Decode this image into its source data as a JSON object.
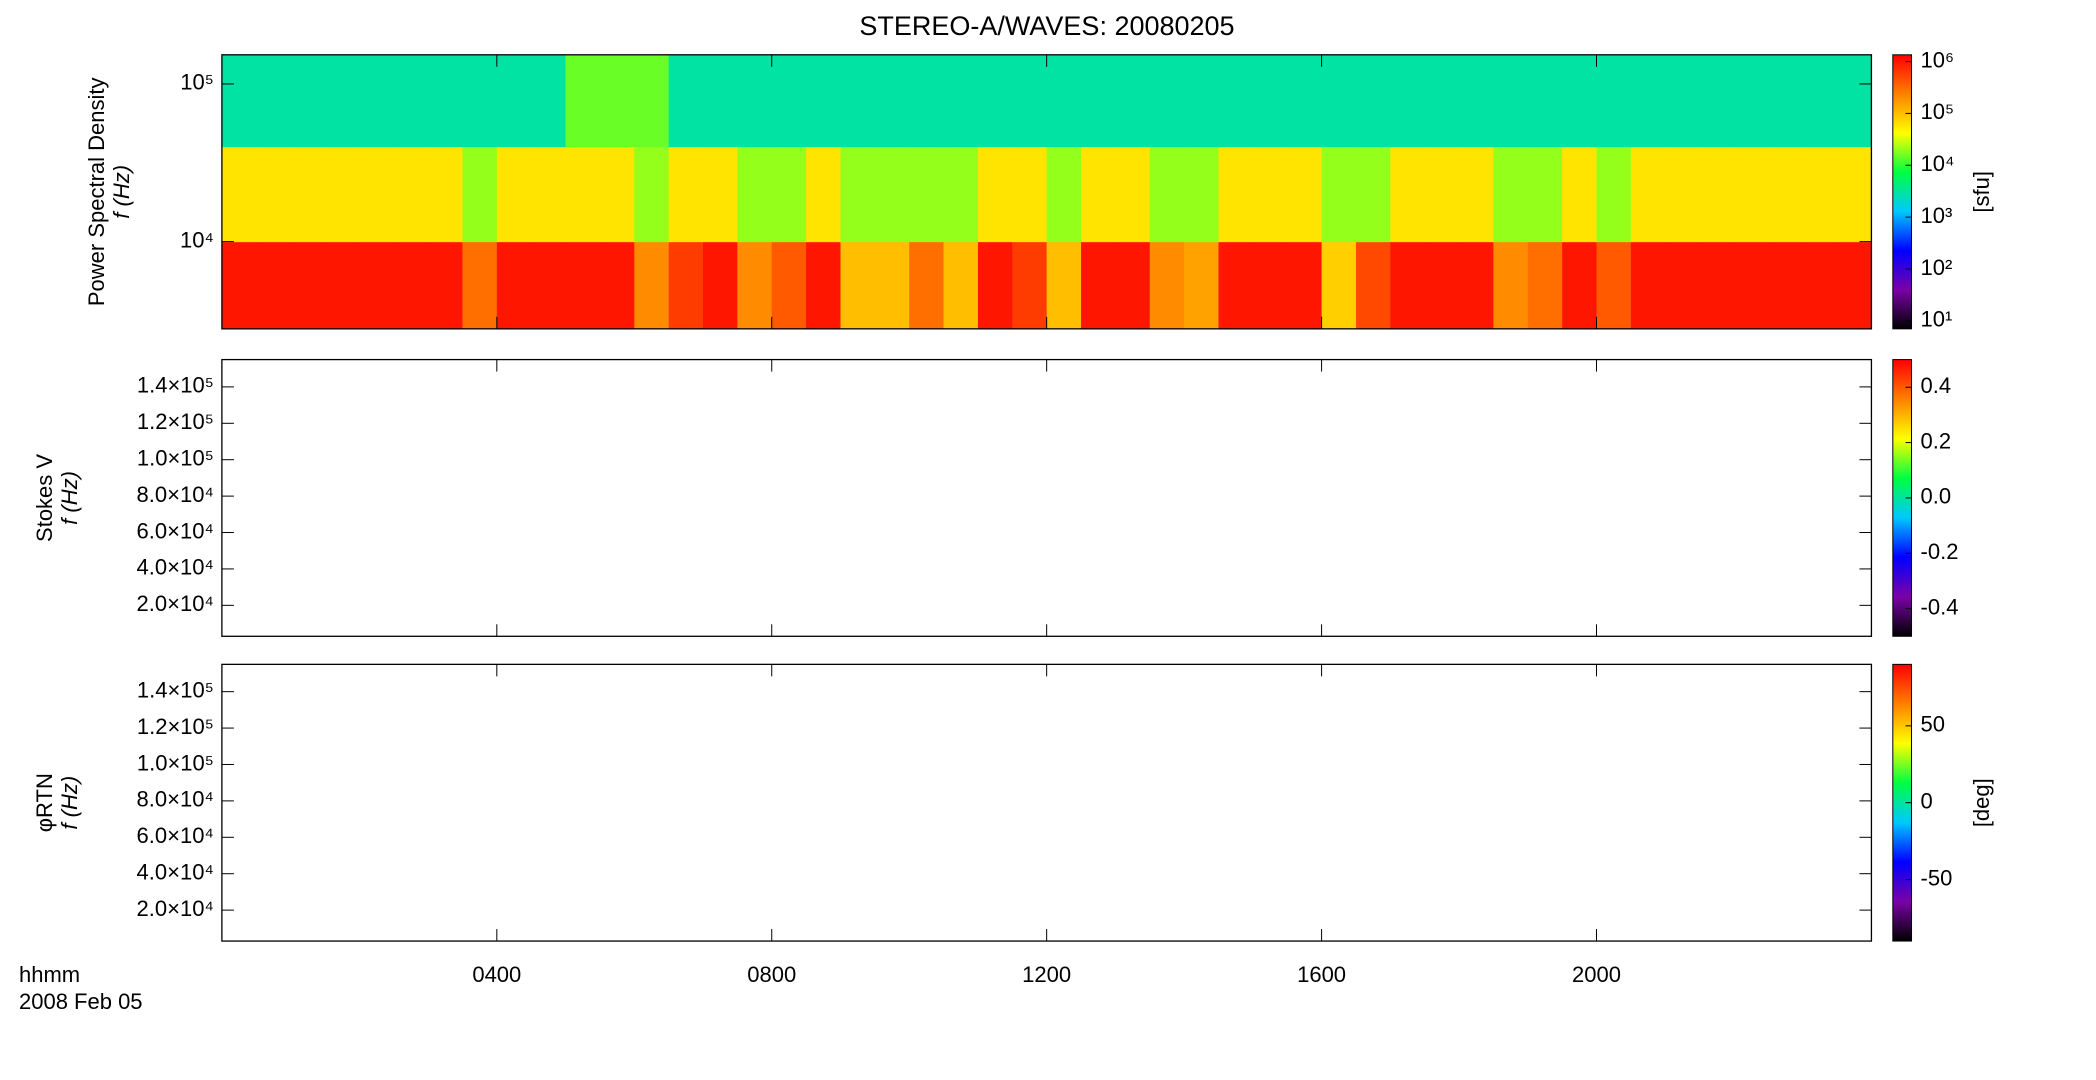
{
  "chart_data": [
    {
      "type": "heatmap",
      "title": "STEREO-A/WAVES: 20080205",
      "ylabel": "Power Spectral Density",
      "ylabel2": "f (Hz)",
      "ylog": true,
      "ylim": [
        2800,
        153000
      ],
      "yticks": [
        {
          "value": 10000,
          "label": "10⁴"
        },
        {
          "value": 100000,
          "label": "10⁵"
        }
      ],
      "x_bins": [
        0,
        0.5,
        1,
        1.5,
        2,
        2.5,
        3,
        3.5,
        4,
        4.5,
        5,
        5.5,
        6,
        6.5,
        7,
        7.5,
        8,
        8.5,
        9,
        9.5,
        10,
        10.5,
        11,
        11.5,
        12,
        12.5,
        13,
        13.5,
        14,
        14.5,
        15,
        15.5,
        16,
        16.5,
        17,
        17.5,
        18,
        18.5,
        19,
        19.5,
        20,
        20.5,
        21,
        21.5,
        22,
        22.5,
        23,
        23.5,
        24
      ],
      "y_bins": [
        2800,
        10000,
        40000,
        153000
      ],
      "z": [
        [
          1000000,
          1000000,
          1000000,
          1000000,
          1000000,
          1000000,
          1000000,
          300000,
          1000000,
          1000000,
          1000000,
          1000000,
          200000,
          600000,
          1000000,
          200000,
          400000,
          1000000,
          100000,
          100000,
          300000,
          100000,
          1000000,
          600000,
          100000,
          1000000,
          1000000,
          200000,
          150000,
          1000000,
          1000000,
          1000000,
          80000,
          500000,
          1000000,
          1000000,
          1000000,
          200000,
          300000,
          1000000,
          400000,
          1000000,
          1000000,
          1000000,
          1000000,
          1000000,
          1000000,
          1000000
        ],
        [
          60000,
          60000,
          60000,
          60000,
          60000,
          60000,
          60000,
          20000,
          60000,
          60000,
          60000,
          60000,
          20000,
          60000,
          60000,
          20000,
          20000,
          60000,
          20000,
          20000,
          20000,
          20000,
          60000,
          60000,
          20000,
          60000,
          60000,
          20000,
          20000,
          60000,
          60000,
          60000,
          20000,
          20000,
          60000,
          60000,
          60000,
          20000,
          20000,
          60000,
          20000,
          60000,
          60000,
          60000,
          60000,
          60000,
          60000,
          60000
        ],
        [
          3000,
          3000,
          3000,
          3000,
          3000,
          3000,
          3000,
          3000,
          3000,
          3000,
          15000,
          15000,
          15000,
          3000,
          3000,
          3000,
          3000,
          3000,
          3000,
          3000,
          3000,
          3000,
          3000,
          3000,
          3000,
          3000,
          3000,
          3000,
          3000,
          3000,
          3000,
          3000,
          3000,
          3000,
          3000,
          3000,
          3000,
          3000,
          3000,
          3000,
          3000,
          3000,
          3000,
          3000,
          3000,
          3000,
          3000,
          3000
        ]
      ],
      "zlog": true,
      "zlim": [
        7,
        1350000
      ],
      "zticks": [
        {
          "value": 10,
          "label": "10¹"
        },
        {
          "value": 100,
          "label": "10²"
        },
        {
          "value": 1000,
          "label": "10³"
        },
        {
          "value": 10000,
          "label": "10⁴"
        },
        {
          "value": 100000,
          "label": "10⁵"
        },
        {
          "value": 1000000,
          "label": "10⁶"
        }
      ],
      "zlabel": "[sfu]",
      "colormap": [
        "#000000",
        "#7b00a8",
        "#0000ff",
        "#00c8ff",
        "#00ff40",
        "#ffff00",
        "#ff8000",
        "#ff0000"
      ]
    },
    {
      "type": "heatmap",
      "ylabel": "Stokes V",
      "ylabel2": "f (Hz)",
      "ylim": [
        3000,
        155000
      ],
      "yticks": [
        {
          "value": 20000,
          "label": "2.0×10⁴"
        },
        {
          "value": 40000,
          "label": "4.0×10⁴"
        },
        {
          "value": 60000,
          "label": "6.0×10⁴"
        },
        {
          "value": 80000,
          "label": "8.0×10⁴"
        },
        {
          "value": 100000,
          "label": "1.0×10⁵"
        },
        {
          "value": 120000,
          "label": "1.2×10⁵"
        },
        {
          "value": 140000,
          "label": "1.4×10⁵"
        }
      ],
      "zlim": [
        -0.5,
        0.5
      ],
      "zticks": [
        -0.4,
        -0.2,
        {
          "value": 0,
          "label": "0.0"
        },
        0.2,
        0.4
      ],
      "colormap": [
        "#000000",
        "#7b00a8",
        "#0000ff",
        "#00c8ff",
        "#00ff40",
        "#ffff00",
        "#ff8000",
        "#ff0000"
      ]
    },
    {
      "type": "heatmap",
      "ylabel": "φRTN",
      "ylabel2": "f (Hz)",
      "ylim": [
        3000,
        155000
      ],
      "yticks": [
        {
          "value": 20000,
          "label": "2.0×10⁴"
        },
        {
          "value": 40000,
          "label": "4.0×10⁴"
        },
        {
          "value": 60000,
          "label": "6.0×10⁴"
        },
        {
          "value": 80000,
          "label": "8.0×10⁴"
        },
        {
          "value": 100000,
          "label": "1.0×10⁵"
        },
        {
          "value": 120000,
          "label": "1.2×10⁵"
        },
        {
          "value": 140000,
          "label": "1.4×10⁵"
        }
      ],
      "zlim": [
        -90,
        90
      ],
      "zticks": [
        -50,
        0,
        50
      ],
      "zlabel": "[deg]",
      "colormap": [
        "#000000",
        "#7b00a8",
        "#0000ff",
        "#00c8ff",
        "#00ff40",
        "#ffff00",
        "#ff8000",
        "#ff0000"
      ],
      "xlim": [
        0,
        24
      ],
      "xticks": [
        {
          "value": 4,
          "label": "0400"
        },
        {
          "value": 8,
          "label": "0800"
        },
        {
          "value": 12,
          "label": "1200"
        },
        {
          "value": 16,
          "label": "1600"
        },
        {
          "value": 20,
          "label": "2000"
        }
      ],
      "xlabel": "hhmm",
      "xlabel2": "2008 Feb 05"
    }
  ]
}
